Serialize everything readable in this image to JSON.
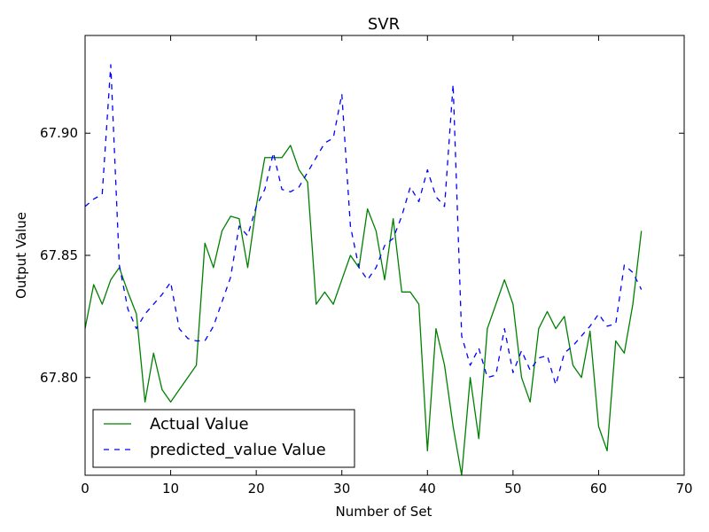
{
  "chart_data": {
    "type": "line",
    "title": "SVR",
    "xlabel": "Number of Set",
    "ylabel": "Output Value",
    "xlim": [
      0,
      70
    ],
    "ylim": [
      67.76,
      67.94
    ],
    "xticks": [
      0,
      10,
      20,
      30,
      40,
      50,
      60,
      70
    ],
    "xtick_labels": [
      "0",
      "10",
      "20",
      "30",
      "40",
      "50",
      "60",
      "70"
    ],
    "yticks": [
      67.8,
      67.85,
      67.9
    ],
    "ytick_labels": [
      "67.80",
      "67.85",
      "67.90"
    ],
    "grid": false,
    "legend_position": "lower-left",
    "series": [
      {
        "name": "Actual Value",
        "color": "#008000",
        "style": "solid",
        "x": [
          0,
          1,
          2,
          3,
          4,
          5,
          6,
          7,
          8,
          9,
          10,
          11,
          12,
          13,
          14,
          15,
          16,
          17,
          18,
          19,
          20,
          21,
          22,
          23,
          24,
          25,
          26,
          27,
          28,
          29,
          30,
          31,
          32,
          33,
          34,
          35,
          36,
          37,
          38,
          39,
          40,
          41,
          42,
          43,
          44,
          45,
          46,
          47,
          48,
          49,
          50,
          51,
          52,
          53,
          54,
          55,
          56,
          57,
          58,
          59,
          60,
          61,
          62,
          63,
          64,
          65
        ],
        "y": [
          67.82,
          67.838,
          67.83,
          67.84,
          67.845,
          67.835,
          67.826,
          67.79,
          67.81,
          67.795,
          67.79,
          67.795,
          67.8,
          67.805,
          67.855,
          67.845,
          67.86,
          67.866,
          67.865,
          67.845,
          67.87,
          67.89,
          67.89,
          67.89,
          67.895,
          67.885,
          67.88,
          67.83,
          67.835,
          67.83,
          67.84,
          67.85,
          67.845,
          67.869,
          67.86,
          67.84,
          67.865,
          67.835,
          67.835,
          67.83,
          67.77,
          67.82,
          67.805,
          67.78,
          67.76,
          67.8,
          67.775,
          67.82,
          67.83,
          67.84,
          67.83,
          67.8,
          67.79,
          67.82,
          67.827,
          67.82,
          67.825,
          67.805,
          67.8,
          67.819,
          67.78,
          67.77,
          67.815,
          67.81,
          67.83,
          67.86
        ]
      },
      {
        "name": "predicted_value Value",
        "color": "#0000ff",
        "style": "dashed",
        "x": [
          0,
          1,
          2,
          3,
          4,
          5,
          6,
          7,
          8,
          9,
          10,
          11,
          12,
          13,
          14,
          15,
          16,
          17,
          18,
          19,
          20,
          21,
          22,
          23,
          24,
          25,
          26,
          27,
          28,
          29,
          30,
          31,
          32,
          33,
          34,
          35,
          36,
          37,
          38,
          39,
          40,
          41,
          42,
          43,
          44,
          45,
          46,
          47,
          48,
          49,
          50,
          51,
          52,
          53,
          54,
          55,
          56,
          57,
          58,
          59,
          60,
          61,
          62,
          63,
          64,
          65
        ],
        "y": [
          67.87,
          67.873,
          67.875,
          67.928,
          67.846,
          67.828,
          67.82,
          67.826,
          67.83,
          67.834,
          67.839,
          67.82,
          67.816,
          67.815,
          67.815,
          67.821,
          67.831,
          67.841,
          67.862,
          67.858,
          67.87,
          67.877,
          67.892,
          67.877,
          67.876,
          67.878,
          67.884,
          67.89,
          67.896,
          67.898,
          67.916,
          67.862,
          67.845,
          67.84,
          67.845,
          67.854,
          67.857,
          67.866,
          67.878,
          67.872,
          67.885,
          67.874,
          67.87,
          67.92,
          67.817,
          67.805,
          67.812,
          67.8,
          67.801,
          67.82,
          67.802,
          67.811,
          67.803,
          67.808,
          67.809,
          67.797,
          67.81,
          67.813,
          67.817,
          67.821,
          67.826,
          67.821,
          67.822,
          67.846,
          67.843,
          67.836
        ]
      }
    ]
  }
}
